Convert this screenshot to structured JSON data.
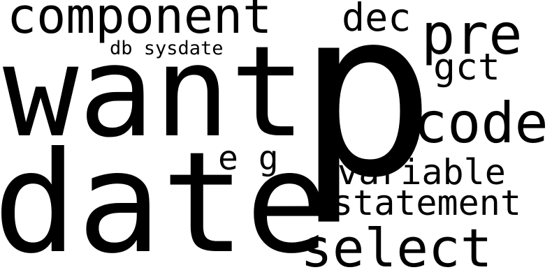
{
  "word_cloud": {
    "words": [
      {
        "text": "p",
        "color": "#2aae7f"
      },
      {
        "text": "want",
        "color": "#fde725"
      },
      {
        "text": "date",
        "color": "#278a8c"
      },
      {
        "text": "component",
        "color": "#d2e21b"
      },
      {
        "text": "select",
        "color": "#bfdf24"
      },
      {
        "text": "code",
        "color": "#3e5589"
      },
      {
        "text": "pre",
        "color": "#48c16e"
      },
      {
        "text": "statement",
        "color": "#c6e021"
      },
      {
        "text": "variable",
        "color": "#24a78a"
      },
      {
        "text": "dec",
        "color": "#23888e"
      },
      {
        "text": "gct",
        "color": "#460b5e"
      },
      {
        "text": "e g",
        "color": "#b5de2b"
      },
      {
        "text": "db sysdate",
        "color": "#26858e"
      }
    ]
  }
}
